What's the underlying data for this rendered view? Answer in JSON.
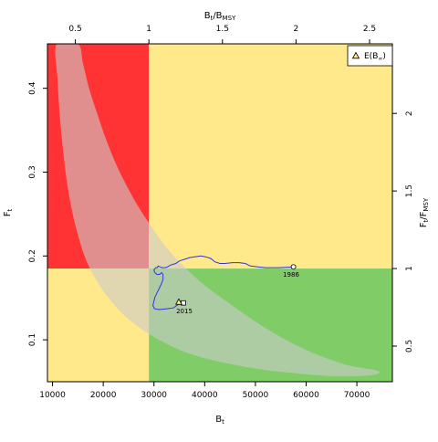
{
  "chart_data": {
    "type": "scatter",
    "description_of_axes": "Kobe-style stock status phase plot",
    "xlabel": {
      "main": "B",
      "sub": "t"
    },
    "ylabel": {
      "main": "F",
      "sub": "t"
    },
    "top_xlabel": {
      "main": "B",
      "sub": "t",
      "mid": "/B",
      "sub2": "MSY"
    },
    "right_ylabel": {
      "main": "F",
      "sub": "t",
      "mid": "/F",
      "sub2": "MSY"
    },
    "xlim": [
      9000,
      77000
    ],
    "ylim": [
      0.05,
      0.453
    ],
    "x_ticks": [
      10000,
      20000,
      30000,
      40000,
      50000,
      60000,
      70000
    ],
    "y_ticks": [
      0.1,
      0.2,
      0.3,
      0.4
    ],
    "top_ticks": [
      "0.5",
      "1",
      "1.5",
      "2",
      "2.5"
    ],
    "right_ticks": [
      "0.5",
      "1",
      "1.5",
      "2"
    ],
    "reference": {
      "Bmsy": 29000,
      "Fmsy": 0.185
    },
    "colors": {
      "red": "#ff3333",
      "yellow": "#ffe98a",
      "green": "#80cc66",
      "ellipse_fill": "#cccccc",
      "ellipse_alpha": 0.6,
      "trajectory": "#3333dd"
    },
    "legend": {
      "placement": "top-right",
      "label": {
        "main": "E(B",
        "sub": "∞",
        "end": ")"
      }
    },
    "labels": {
      "start_year": "1986",
      "end_year": "2015"
    },
    "start_point": {
      "x": 57500,
      "y": 0.187
    },
    "end_point": {
      "x": 35800,
      "y": 0.144
    },
    "expected_point": {
      "x": 34900,
      "y": 0.145
    },
    "trajectory": [
      [
        57500,
        0.187
      ],
      [
        54500,
        0.186
      ],
      [
        52000,
        0.186
      ],
      [
        50500,
        0.187
      ],
      [
        49000,
        0.188
      ],
      [
        48000,
        0.191
      ],
      [
        46800,
        0.192
      ],
      [
        45500,
        0.192
      ],
      [
        44000,
        0.191
      ],
      [
        43000,
        0.191
      ],
      [
        42000,
        0.193
      ],
      [
        41200,
        0.197
      ],
      [
        40200,
        0.199
      ],
      [
        39200,
        0.2
      ],
      [
        38000,
        0.199
      ],
      [
        37000,
        0.198
      ],
      [
        36000,
        0.196
      ],
      [
        35000,
        0.194
      ],
      [
        34300,
        0.191
      ],
      [
        33700,
        0.19
      ],
      [
        33200,
        0.189
      ],
      [
        32700,
        0.187
      ],
      [
        32200,
        0.186
      ],
      [
        31600,
        0.186
      ],
      [
        31200,
        0.187
      ],
      [
        30800,
        0.188
      ],
      [
        30700,
        0.186
      ],
      [
        30300,
        0.186
      ],
      [
        30000,
        0.183
      ],
      [
        30200,
        0.18
      ],
      [
        30600,
        0.178
      ],
      [
        31100,
        0.178
      ],
      [
        31500,
        0.18
      ],
      [
        31800,
        0.178
      ],
      [
        31800,
        0.172
      ],
      [
        31400,
        0.166
      ],
      [
        31000,
        0.161
      ],
      [
        30600,
        0.156
      ],
      [
        30200,
        0.151
      ],
      [
        30000,
        0.146
      ],
      [
        29800,
        0.141
      ],
      [
        30100,
        0.137
      ],
      [
        31000,
        0.136
      ],
      [
        32500,
        0.137
      ],
      [
        33800,
        0.138
      ],
      [
        34800,
        0.142
      ],
      [
        35800,
        0.144
      ]
    ],
    "ellipse_region": [
      [
        10800,
        0.453
      ],
      [
        15000,
        0.453
      ],
      [
        16000,
        0.43
      ],
      [
        17200,
        0.4
      ],
      [
        18800,
        0.37
      ],
      [
        20500,
        0.34
      ],
      [
        22500,
        0.31
      ],
      [
        24500,
        0.285
      ],
      [
        27000,
        0.258
      ],
      [
        29500,
        0.235
      ],
      [
        32500,
        0.21
      ],
      [
        36000,
        0.187
      ],
      [
        40000,
        0.165
      ],
      [
        44000,
        0.147
      ],
      [
        48000,
        0.13
      ],
      [
        52000,
        0.114
      ],
      [
        56000,
        0.1
      ],
      [
        60000,
        0.088
      ],
      [
        64000,
        0.078
      ],
      [
        68000,
        0.07
      ],
      [
        71500,
        0.066
      ],
      [
        73500,
        0.064
      ],
      [
        74500,
        0.061
      ],
      [
        73000,
        0.058
      ],
      [
        69000,
        0.0565
      ],
      [
        64000,
        0.057
      ],
      [
        58000,
        0.06
      ],
      [
        52000,
        0.064
      ],
      [
        46000,
        0.07
      ],
      [
        40000,
        0.078
      ],
      [
        35000,
        0.088
      ],
      [
        31000,
        0.1
      ],
      [
        27500,
        0.113
      ],
      [
        24500,
        0.127
      ],
      [
        22000,
        0.143
      ],
      [
        19800,
        0.16
      ],
      [
        17800,
        0.18
      ],
      [
        16300,
        0.2
      ],
      [
        15000,
        0.225
      ],
      [
        13800,
        0.255
      ],
      [
        12800,
        0.29
      ],
      [
        12000,
        0.33
      ],
      [
        11400,
        0.37
      ],
      [
        11000,
        0.41
      ],
      [
        10800,
        0.453
      ]
    ]
  }
}
